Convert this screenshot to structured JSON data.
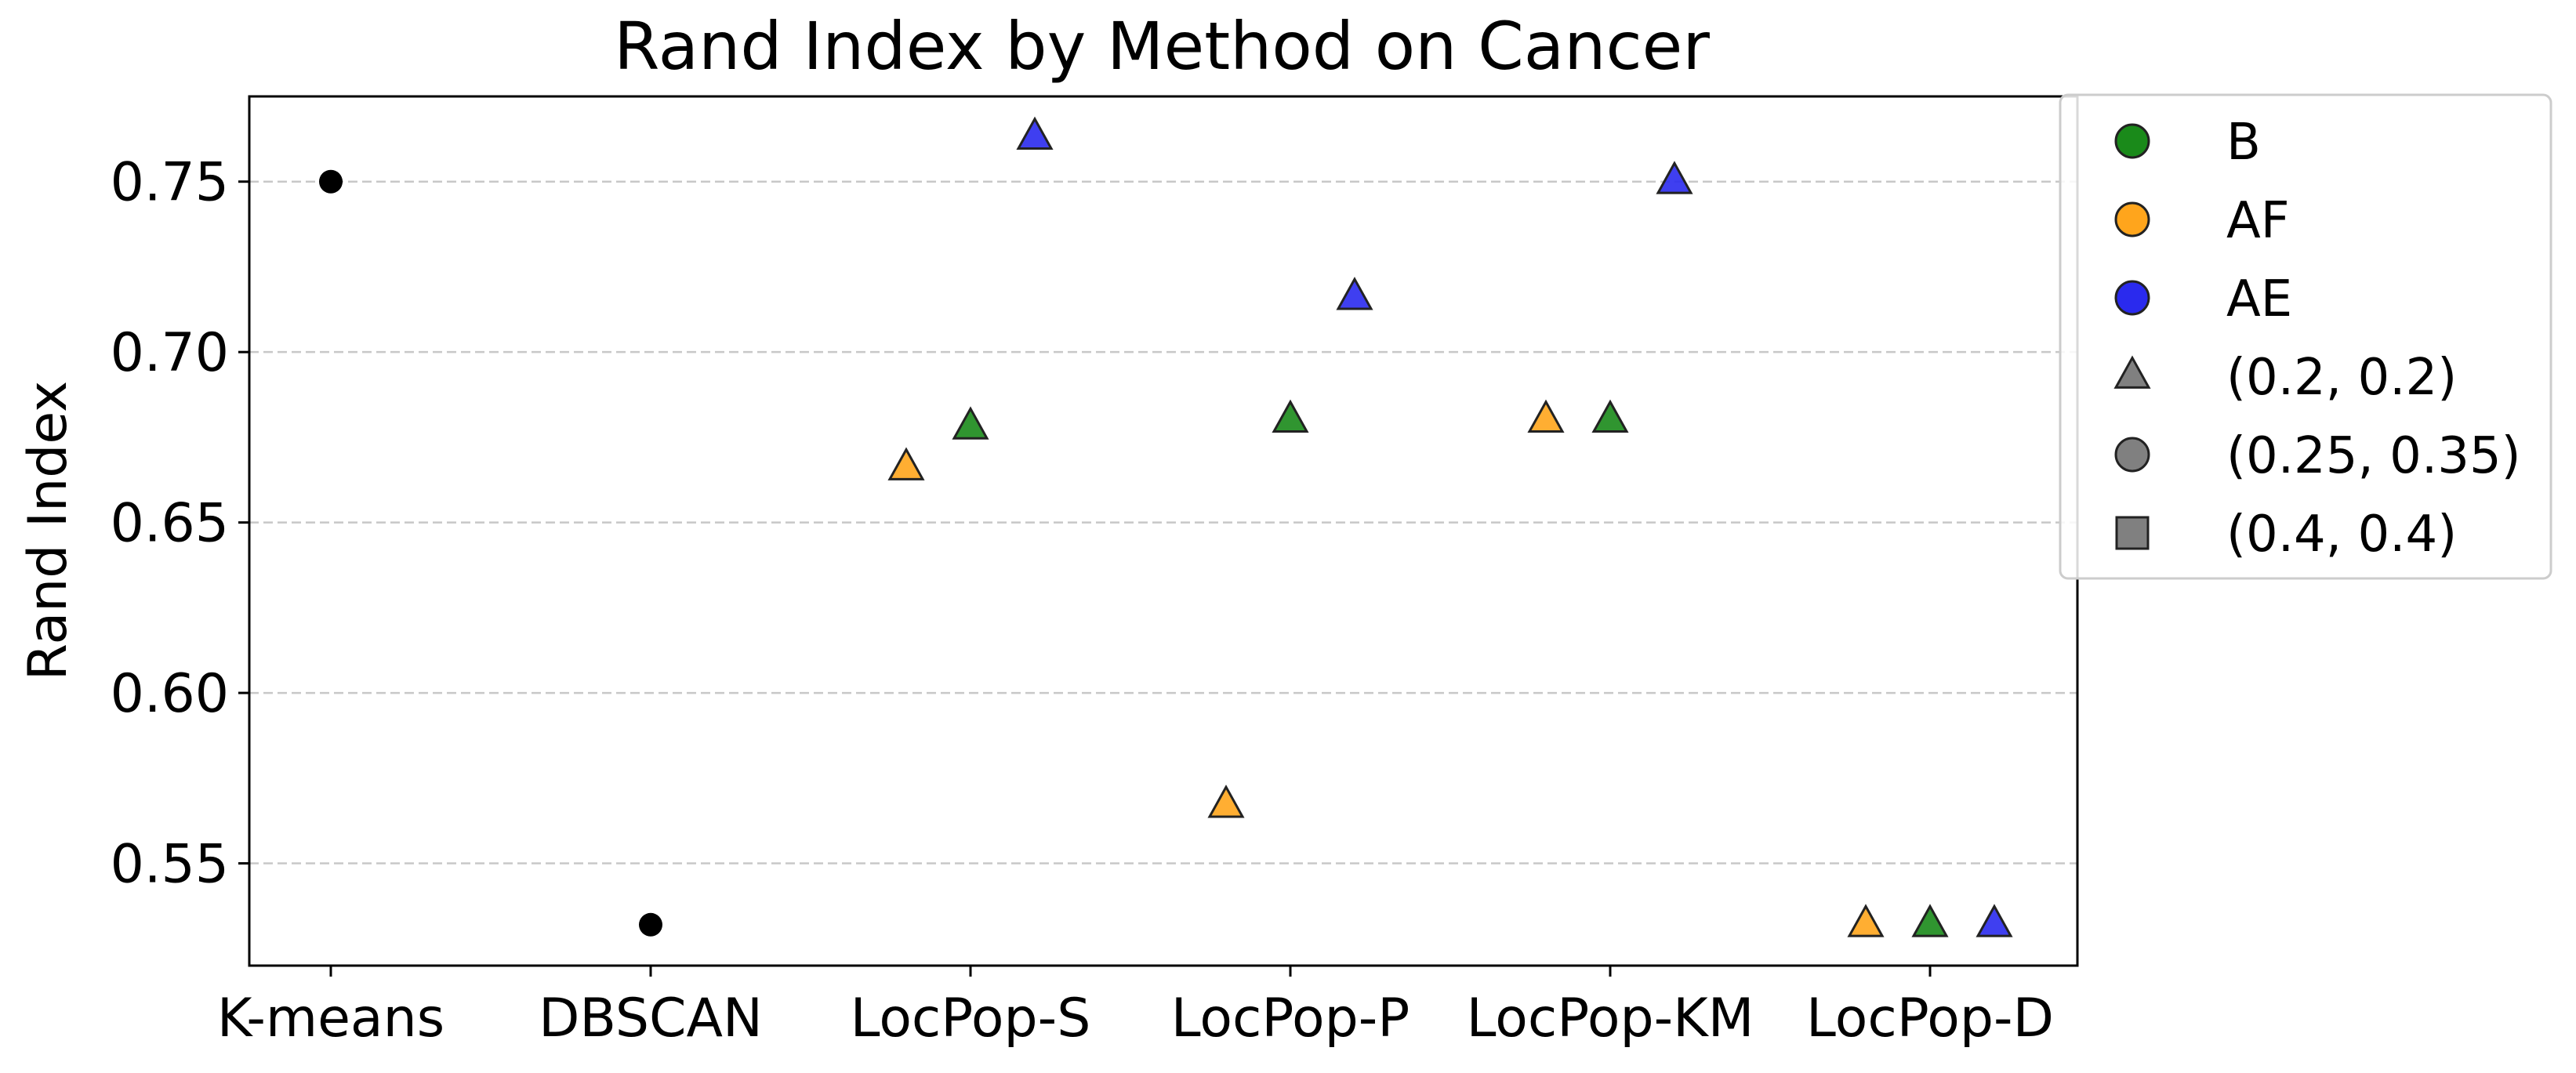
{
  "chart_data": {
    "type": "scatter",
    "title": "Rand Index by Method on Cancer",
    "xlabel": "",
    "ylabel": "Rand Index",
    "categories": [
      "K-means",
      "DBSCAN",
      "LocPop-S",
      "LocPop-P",
      "LocPop-KM",
      "LocPop-D"
    ],
    "ylim": [
      0.52,
      0.775
    ],
    "yticks": [
      0.55,
      0.6,
      0.65,
      0.7,
      0.75
    ],
    "ytick_labels": [
      "0.55",
      "0.60",
      "0.65",
      "0.70",
      "0.75"
    ],
    "grid": "horizontal dashed",
    "legend_position": "outside-right",
    "colors": {
      "B": "#1a8a1a",
      "AF": "#ffa51c",
      "AE": "#2a2aee",
      "baseline": "#000000",
      "legend_gray": "#808080"
    },
    "legend": [
      {
        "label": "B",
        "kind": "color",
        "color": "#1a8a1a",
        "marker": "circle"
      },
      {
        "label": "AF",
        "kind": "color",
        "color": "#ffa51c",
        "marker": "circle"
      },
      {
        "label": "AE",
        "kind": "color",
        "color": "#2a2aee",
        "marker": "circle"
      },
      {
        "label": "(0.2, 0.2)",
        "kind": "marker",
        "color": "#808080",
        "marker": "triangle"
      },
      {
        "label": "(0.25, 0.35)",
        "kind": "marker",
        "color": "#808080",
        "marker": "circle"
      },
      {
        "label": "(0.4, 0.4)",
        "kind": "marker",
        "color": "#808080",
        "marker": "square"
      }
    ],
    "points": [
      {
        "category": "K-means",
        "group": "baseline",
        "marker": "dot",
        "y": 0.75
      },
      {
        "category": "DBSCAN",
        "group": "baseline",
        "marker": "dot",
        "y": 0.532
      },
      {
        "category": "LocPop-S",
        "group": "AF",
        "marker": "triangle",
        "y": 0.666
      },
      {
        "category": "LocPop-S",
        "group": "B",
        "marker": "triangle",
        "y": 0.678
      },
      {
        "category": "LocPop-S",
        "group": "AE",
        "marker": "triangle",
        "y": 0.763
      },
      {
        "category": "LocPop-P",
        "group": "AF",
        "marker": "triangle",
        "y": 0.567
      },
      {
        "category": "LocPop-P",
        "group": "B",
        "marker": "triangle",
        "y": 0.68
      },
      {
        "category": "LocPop-P",
        "group": "AE",
        "marker": "triangle",
        "y": 0.716
      },
      {
        "category": "LocPop-KM",
        "group": "AF",
        "marker": "triangle",
        "y": 0.68
      },
      {
        "category": "LocPop-KM",
        "group": "B",
        "marker": "triangle",
        "y": 0.68
      },
      {
        "category": "LocPop-KM",
        "group": "AE",
        "marker": "triangle",
        "y": 0.75
      },
      {
        "category": "LocPop-D",
        "group": "AF",
        "marker": "triangle",
        "y": 0.532
      },
      {
        "category": "LocPop-D",
        "group": "B",
        "marker": "triangle",
        "y": 0.532
      },
      {
        "category": "LocPop-D",
        "group": "AE",
        "marker": "triangle",
        "y": 0.532
      }
    ]
  }
}
